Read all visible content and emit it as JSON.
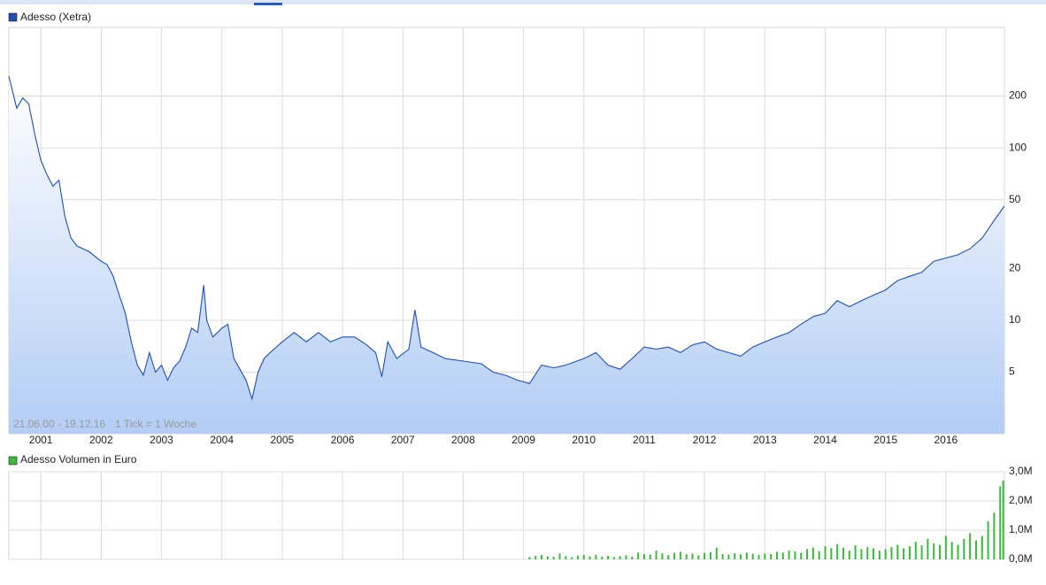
{
  "chart_data": [
    {
      "type": "line",
      "title": "Adesso (Xetra)",
      "annotation": "21.06.00 - 19.12.16",
      "note": "1 Tick = 1 Woche",
      "log_scale": true,
      "grid": true,
      "color": "#1f4fb0",
      "fill": "#b3cdf5",
      "x": [
        2000.47,
        2000.55,
        2000.6,
        2000.7,
        2000.8,
        2000.9,
        2001.0,
        2001.1,
        2001.2,
        2001.3,
        2001.4,
        2001.5,
        2001.6,
        2001.8,
        2002.0,
        2002.1,
        2002.2,
        2002.3,
        2002.4,
        2002.5,
        2002.6,
        2002.7,
        2002.8,
        2002.9,
        2003.0,
        2003.1,
        2003.2,
        2003.3,
        2003.4,
        2003.5,
        2003.6,
        2003.7,
        2003.75,
        2003.85,
        2004.0,
        2004.1,
        2004.2,
        2004.3,
        2004.4,
        2004.5,
        2004.6,
        2004.7,
        2004.8,
        2005.0,
        2005.2,
        2005.4,
        2005.6,
        2005.8,
        2006.0,
        2006.2,
        2006.4,
        2006.55,
        2006.65,
        2006.75,
        2006.9,
        2007.1,
        2007.2,
        2007.3,
        2007.5,
        2007.7,
        2008.0,
        2008.3,
        2008.5,
        2008.7,
        2008.9,
        2009.1,
        2009.3,
        2009.5,
        2009.7,
        2010.0,
        2010.2,
        2010.4,
        2010.6,
        2010.8,
        2011.0,
        2011.2,
        2011.4,
        2011.6,
        2011.8,
        2012.0,
        2012.2,
        2012.4,
        2012.6,
        2012.8,
        2013.0,
        2013.2,
        2013.4,
        2013.6,
        2013.8,
        2014.0,
        2014.2,
        2014.4,
        2014.6,
        2014.8,
        2015.0,
        2015.2,
        2015.4,
        2015.6,
        2015.8,
        2016.0,
        2016.2,
        2016.4,
        2016.6,
        2016.8,
        2016.97
      ],
      "series": [
        {
          "values": [
            260,
            200,
            170,
            195,
            180,
            120,
            85,
            70,
            60,
            65,
            40,
            30,
            27,
            25,
            22,
            21,
            18,
            14,
            11,
            7.5,
            5.5,
            4.8,
            6.5,
            5,
            5.5,
            4.5,
            5.3,
            5.8,
            7,
            9,
            8.5,
            16,
            10,
            8,
            9,
            9.5,
            6,
            5.2,
            4.5,
            3.5,
            5,
            6,
            6.5,
            7.5,
            8.5,
            7.5,
            8.5,
            7.5,
            8,
            8,
            7.2,
            6.5,
            4.7,
            7.5,
            6,
            6.8,
            11.5,
            7,
            6.5,
            6,
            5.8,
            5.6,
            5,
            4.8,
            4.5,
            4.3,
            5.5,
            5.3,
            5.5,
            6,
            6.5,
            5.5,
            5.2,
            6,
            7,
            6.8,
            7,
            6.5,
            7.2,
            7.5,
            6.8,
            6.5,
            6.2,
            7,
            7.5,
            8,
            8.5,
            9.5,
            10.5,
            11,
            13,
            12,
            13,
            14,
            15,
            17,
            18,
            19,
            22,
            23,
            24,
            26,
            30,
            38,
            46
          ]
        }
      ],
      "xlim": [
        2000.47,
        2016.97
      ],
      "xticks": [
        2001,
        2002,
        2003,
        2004,
        2005,
        2006,
        2007,
        2008,
        2009,
        2010,
        2011,
        2012,
        2013,
        2014,
        2015,
        2016
      ],
      "ylim": [
        2.2,
        500
      ],
      "yticks": [
        5,
        10,
        20,
        50,
        100,
        200
      ]
    },
    {
      "type": "bar",
      "title": "Adesso Volumen in Euro",
      "grid": true,
      "color": "#3cb83c",
      "x": [
        2009.1,
        2009.2,
        2009.3,
        2009.4,
        2009.5,
        2009.6,
        2009.7,
        2009.8,
        2009.9,
        2010.0,
        2010.1,
        2010.2,
        2010.3,
        2010.4,
        2010.5,
        2010.6,
        2010.7,
        2010.8,
        2010.9,
        2011.0,
        2011.1,
        2011.2,
        2011.3,
        2011.4,
        2011.5,
        2011.6,
        2011.7,
        2011.8,
        2011.9,
        2012.0,
        2012.1,
        2012.2,
        2012.3,
        2012.4,
        2012.5,
        2012.6,
        2012.7,
        2012.8,
        2012.9,
        2013.0,
        2013.1,
        2013.2,
        2013.3,
        2013.4,
        2013.5,
        2013.6,
        2013.7,
        2013.8,
        2013.9,
        2014.0,
        2014.1,
        2014.2,
        2014.3,
        2014.4,
        2014.5,
        2014.6,
        2014.7,
        2014.8,
        2014.9,
        2015.0,
        2015.1,
        2015.2,
        2015.3,
        2015.4,
        2015.5,
        2015.6,
        2015.7,
        2015.8,
        2015.9,
        2016.0,
        2016.1,
        2016.2,
        2016.3,
        2016.4,
        2016.5,
        2016.6,
        2016.7,
        2016.8,
        2016.9,
        2016.95
      ],
      "values": [
        80000,
        120000,
        150000,
        100000,
        90000,
        200000,
        110000,
        70000,
        130000,
        150000,
        100000,
        160000,
        90000,
        120000,
        80000,
        110000,
        140000,
        95000,
        230000,
        180000,
        160000,
        300000,
        200000,
        150000,
        220000,
        260000,
        180000,
        200000,
        140000,
        220000,
        250000,
        400000,
        180000,
        160000,
        210000,
        170000,
        230000,
        190000,
        150000,
        200000,
        180000,
        260000,
        230000,
        300000,
        270000,
        220000,
        350000,
        400000,
        280000,
        450000,
        380000,
        520000,
        400000,
        300000,
        480000,
        350000,
        420000,
        380000,
        300000,
        350000,
        420000,
        500000,
        380000,
        450000,
        600000,
        480000,
        700000,
        550000,
        500000,
        800000,
        600000,
        500000,
        700000,
        900000,
        650000,
        800000,
        1300000,
        1600000,
        2500000,
        2700000
      ],
      "ylim": [
        0,
        3000000
      ],
      "yticks": [
        {
          "value": 0,
          "label": "0,0M"
        },
        {
          "value": 1000000,
          "label": "1,0M"
        },
        {
          "value": 2000000,
          "label": "2,0M"
        },
        {
          "value": 3000000,
          "label": "3,0M"
        }
      ]
    }
  ]
}
